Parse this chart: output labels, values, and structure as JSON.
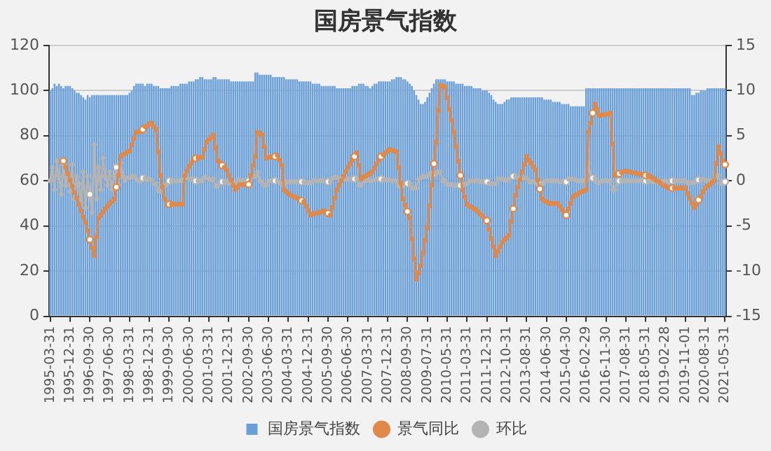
{
  "chart_data": {
    "type": "bar",
    "title": "国房景气指数",
    "categories": [
      "1995-03-31",
      null,
      null,
      null,
      null,
      null,
      null,
      null,
      null,
      "1995-12-31",
      null,
      null,
      null,
      null,
      null,
      null,
      null,
      null,
      "1996-09-30",
      null,
      null,
      null,
      null,
      null,
      null,
      null,
      null,
      "1997-06-30",
      null,
      null,
      null,
      null,
      null,
      null,
      null,
      null,
      "1998-03-31",
      null,
      null,
      null,
      null,
      null,
      null,
      null,
      null,
      "1998-12-31",
      null,
      null,
      null,
      null,
      null,
      null,
      null,
      null,
      "1999-09-30",
      null,
      null,
      null,
      null,
      null,
      null,
      null,
      null,
      "2000-06-30",
      null,
      null,
      null,
      null,
      null,
      null,
      null,
      null,
      "2001-03-31",
      null,
      null,
      null,
      null,
      null,
      null,
      null,
      null,
      "2001-12-31",
      null,
      null,
      null,
      null,
      null,
      null,
      null,
      null,
      "2002-09-30",
      null,
      null,
      null,
      null,
      null,
      null,
      null,
      null,
      "2003-06-30",
      null,
      null,
      null,
      null,
      null,
      null,
      null,
      null,
      "2004-03-31",
      null,
      null,
      null,
      null,
      null,
      null,
      null,
      null,
      "2004-12-31",
      null,
      null,
      null,
      null,
      null,
      null,
      null,
      null,
      "2005-09-30",
      null,
      null,
      null,
      null,
      null,
      null,
      null,
      null,
      "2006-06-30",
      null,
      null,
      null,
      null,
      null,
      null,
      null,
      null,
      "2007-03-31",
      null,
      null,
      null,
      null,
      null,
      null,
      null,
      null,
      "2007-12-31",
      null,
      null,
      null,
      null,
      null,
      null,
      null,
      null,
      "2008-09-30",
      null,
      null,
      null,
      null,
      null,
      null,
      null,
      null,
      "2009-07-31",
      null,
      null,
      null,
      null,
      null,
      null,
      null,
      null,
      "2010-05-31",
      null,
      null,
      null,
      null,
      null,
      null,
      null,
      null,
      "2011-03-31",
      null,
      null,
      null,
      null,
      null,
      null,
      null,
      null,
      "2011-12-31",
      null,
      null,
      null,
      null,
      null,
      null,
      null,
      null,
      "2012-10-31",
      null,
      null,
      null,
      null,
      null,
      null,
      null,
      null,
      "2013-08-31",
      null,
      null,
      null,
      null,
      null,
      null,
      null,
      null,
      "2014-06-30",
      null,
      null,
      null,
      null,
      null,
      null,
      null,
      null,
      "2015-04-30",
      null,
      null,
      null,
      null,
      null,
      null,
      null,
      null,
      "2016-02-29",
      null,
      null,
      null,
      null,
      null,
      null,
      null,
      null,
      "2016-11-30",
      null,
      null,
      null,
      null,
      null,
      null,
      null,
      null,
      "2017-08-31",
      null,
      null,
      null,
      null,
      null,
      null,
      null,
      null,
      "2018-05-31",
      null,
      null,
      null,
      null,
      null,
      null,
      null,
      null,
      "2019-02-28",
      null,
      null,
      null,
      null,
      null,
      null,
      null,
      null,
      "2019-11-01",
      null,
      null,
      null,
      null,
      null,
      null,
      null,
      null,
      "2020-08-31",
      null,
      null,
      null,
      null,
      null,
      null,
      null,
      null,
      "2021-05-31"
    ],
    "series": [
      {
        "name": "国房景气指数",
        "color": "#6a9fd8",
        "values": [
          100,
          101,
          103,
          102,
          103,
          102,
          101,
          102,
          102,
          102,
          101,
          100,
          99,
          99,
          98,
          97,
          96,
          98,
          97,
          98,
          98,
          98,
          98,
          98,
          98,
          98,
          98,
          98,
          98,
          98,
          98,
          98,
          98,
          98,
          98,
          98,
          99,
          100,
          102,
          103,
          103,
          103,
          103,
          102,
          103,
          103,
          103,
          102,
          102,
          102,
          101,
          101,
          101,
          101,
          101,
          102,
          102,
          102,
          102,
          103,
          103,
          103,
          103,
          104,
          104,
          104,
          105,
          105,
          106,
          106,
          105,
          105,
          105,
          105,
          106,
          106,
          105,
          105,
          105,
          105,
          105,
          105,
          104,
          104,
          104,
          104,
          104,
          104,
          104,
          104,
          104,
          104,
          104,
          108,
          108,
          107,
          107,
          107,
          107,
          107,
          107,
          106,
          106,
          106,
          106,
          106,
          106,
          105,
          105,
          105,
          105,
          105,
          105,
          104,
          104,
          104,
          104,
          104,
          104,
          103,
          103,
          103,
          103,
          102,
          102,
          102,
          102,
          102,
          102,
          102,
          101,
          101,
          101,
          101,
          101,
          101,
          101,
          102,
          102,
          102,
          103,
          103,
          103,
          102,
          102,
          101,
          102,
          103,
          103,
          104,
          104,
          104,
          104,
          104,
          104,
          105,
          105,
          106,
          106,
          106,
          105,
          105,
          104,
          103,
          102,
          100,
          98,
          96,
          94,
          94,
          95,
          97,
          99,
          101,
          103,
          105,
          105,
          105,
          105,
          105,
          104,
          104,
          104,
          104,
          103,
          103,
          103,
          103,
          102,
          102,
          102,
          102,
          101,
          101,
          101,
          101,
          100,
          100,
          100,
          99,
          98,
          96,
          95,
          94,
          94,
          94,
          95,
          96,
          96,
          97,
          97,
          97,
          97,
          97,
          97,
          97,
          97,
          97,
          97,
          97,
          97,
          97,
          97,
          97,
          96,
          96,
          96,
          96,
          95,
          95,
          95,
          95,
          94,
          94,
          94,
          94,
          93,
          93,
          93,
          93,
          93,
          93,
          93,
          101,
          101,
          101,
          101,
          101,
          101,
          101,
          101,
          101,
          101,
          101,
          101,
          101,
          101,
          101,
          101,
          101,
          101,
          101,
          101,
          101,
          101,
          101,
          101,
          101,
          101,
          101,
          101,
          101,
          101,
          101,
          101,
          101,
          101,
          101,
          101,
          101,
          101,
          101,
          101,
          101,
          101,
          101,
          101,
          101,
          101,
          101,
          101,
          98,
          98,
          99,
          99,
          100,
          100,
          100,
          101,
          101,
          101,
          101,
          101,
          101,
          101,
          101,
          101
        ]
      },
      {
        "name": "景气同比",
        "type": "line",
        "axis": "y2",
        "color": "#e0894a",
        "values": [
          null,
          null,
          null,
          null,
          null,
          null,
          2.2,
          1.5,
          0.8,
          0.1,
          -0.6,
          -1.3,
          -1.9,
          -2.6,
          -3.3,
          -4.0,
          -4.6,
          -5.5,
          -6.5,
          -7.4,
          -8.3,
          -6.2,
          -4.1,
          -3.8,
          -3.4,
          -3.1,
          -2.8,
          -2.5,
          -2.3,
          -2.0,
          -0.7,
          0.6,
          2.7,
          2.9,
          3.0,
          3.2,
          3.3,
          4.0,
          4.7,
          5.4,
          5.4,
          5.4,
          5.7,
          6.0,
          6.1,
          6.3,
          6.4,
          6.0,
          5.7,
          3.2,
          0.6,
          -0.7,
          -2.0,
          -2.6,
          -2.6,
          -2.6,
          -2.6,
          -2.6,
          -2.6,
          -2.6,
          -2.6,
          0.6,
          1.1,
          1.6,
          2.0,
          2.5,
          2.5,
          2.5,
          2.6,
          2.6,
          3.5,
          4.3,
          4.6,
          4.8,
          5.1,
          3.7,
          2.2,
          2.0,
          1.7,
          1.5,
          1.2,
          0.6,
          0.1,
          -0.5,
          -1.0,
          -0.7,
          -0.4,
          -0.4,
          -0.4,
          -0.4,
          -0.4,
          0.6,
          1.7,
          2.7,
          5.4,
          5.3,
          5.1,
          3.8,
          2.5,
          2.6,
          2.6,
          2.7,
          2.7,
          2.8,
          2.3,
          1.7,
          -1.0,
          -1.2,
          -1.4,
          -1.6,
          -1.7,
          -1.8,
          -1.9,
          -2.1,
          -2.2,
          -2.3,
          -2.8,
          -3.3,
          -3.8,
          -3.7,
          -3.6,
          -3.6,
          -3.5,
          -3.4,
          -3.3,
          -3.5,
          -3.6,
          -3.8,
          -2.9,
          -1.9,
          -1.0,
          -0.5,
          0,
          0.5,
          1.0,
          1.5,
          1.9,
          2.3,
          2.7,
          3.1,
          1.7,
          0.2,
          0.4,
          0.5,
          0.7,
          0.8,
          1.0,
          1.4,
          1.9,
          2.3,
          2.7,
          2.9,
          3.1,
          3.3,
          3.5,
          3.4,
          3.3,
          3.2,
          1.5,
          -0.3,
          -2.0,
          -2.7,
          -3.4,
          -4.1,
          -6.4,
          -8.6,
          -10.9,
          -10.2,
          -9.4,
          -8.0,
          -6.6,
          -5.2,
          -2.8,
          -0.5,
          1.9,
          4.3,
          7.8,
          10.6,
          10.5,
          10.4,
          9.2,
          7.9,
          6.7,
          5.4,
          3.8,
          2.2,
          0.6,
          -1.0,
          -1.8,
          -2.6,
          -2.8,
          -2.9,
          -3.1,
          -3.2,
          -3.4,
          -3.7,
          -3.9,
          -4.2,
          -4.4,
          -5.4,
          -6.4,
          -7.3,
          -8.3,
          -7.8,
          -7.3,
          -6.8,
          -6.5,
          -6.3,
          -6.0,
          -4.5,
          -3.1,
          -1.6,
          -0.7,
          0.1,
          1.0,
          1.8,
          2.7,
          2.3,
          2.0,
          1.6,
          1.2,
          0.1,
          -0.9,
          -2.0,
          -2.2,
          -2.3,
          -2.5,
          -2.5,
          -2.5,
          -2.5,
          -2.5,
          -2.8,
          -3.2,
          -3.5,
          -3.8,
          -3.1,
          -2.5,
          -1.8,
          -1.6,
          -1.5,
          -1.3,
          -1.2,
          -1.1,
          -1.0,
          5.4,
          6.4,
          7.5,
          8.5,
          7.9,
          7.2,
          7.3,
          7.3,
          7.4,
          7.4,
          7.5,
          4.1,
          0.6,
          0.7,
          0.8,
          0.9,
          1.0,
          1.1,
          1.0,
          1.0,
          0.9,
          0.9,
          0.8,
          0.8,
          0.7,
          0.7,
          0.6,
          0.6,
          0.5,
          0.3,
          0.2,
          0,
          -0.1,
          -0.3,
          -0.5,
          -0.6,
          -0.8,
          -0.8,
          -0.8,
          -0.8,
          -0.8,
          -0.8,
          -0.8,
          -0.8,
          -0.8,
          -1.4,
          -1.9,
          -2.5,
          -3.0,
          -2.6,
          -2.1,
          -1.7,
          -1.2,
          -0.8,
          -0.6,
          -0.4,
          -0.2,
          0,
          1.9,
          3.8,
          3.0,
          2.2,
          1.8
        ]
      },
      {
        "name": "环比",
        "type": "line",
        "axis": "y2",
        "color": "#b4b4b4",
        "values": [
          0,
          1.5,
          -1.0,
          2.2,
          0.5,
          -1.5,
          2.0,
          -0.5,
          0.8,
          -1.2,
          1.8,
          -2.0,
          0.5,
          -0.3,
          -2.5,
          1.0,
          -3.0,
          0.5,
          -1.5,
          -3.5,
          4.0,
          -2.0,
          1.5,
          -1.0,
          2.5,
          0.5,
          -0.5,
          1.0,
          -1.0,
          0.5,
          1.5,
          -0.5,
          2.0,
          0.5,
          0,
          0.3,
          0.3,
          0.5,
          0.5,
          0.2,
          0,
          0,
          0.3,
          0.3,
          0.1,
          0.2,
          0.1,
          -0.3,
          -0.3,
          -1.0,
          -1.2,
          -0.5,
          -0.6,
          -0.3,
          0,
          0,
          0,
          0,
          0,
          0,
          0,
          0.8,
          0.3,
          0.2,
          0.2,
          0.2,
          0,
          0,
          0,
          0,
          0.4,
          0.4,
          0.2,
          0.1,
          0.2,
          -0.6,
          -0.6,
          -0.1,
          -0.1,
          -0.1,
          -0.1,
          -0.3,
          -0.2,
          -0.3,
          -0.2,
          0.1,
          0.1,
          0,
          0,
          0,
          0,
          0.4,
          0.5,
          0.5,
          1.0,
          0,
          -0.1,
          -0.5,
          -0.5,
          0,
          0,
          0,
          0,
          0,
          -0.2,
          -0.3,
          -0.6,
          -0.1,
          -0.1,
          -0.1,
          -0.1,
          -0.1,
          -0.1,
          -0.1,
          -0.1,
          -0.1,
          -0.2,
          -0.2,
          -0.2,
          0,
          0,
          0,
          0,
          0,
          0,
          -0.1,
          -0.1,
          -0.1,
          0.3,
          0.4,
          0.4,
          0.2,
          0.2,
          0.2,
          0.2,
          0.2,
          0.2,
          0.2,
          0.2,
          0.2,
          -0.5,
          -0.5,
          0,
          0,
          0.1,
          0,
          0,
          0.1,
          0.2,
          0.2,
          0.2,
          0.1,
          0.1,
          0.1,
          0.1,
          0,
          0,
          0,
          -0.6,
          -0.6,
          -0.6,
          -0.3,
          -0.3,
          -0.3,
          -0.8,
          -0.8,
          -0.8,
          0.2,
          0.3,
          0.5,
          0.5,
          0.5,
          0.8,
          0.8,
          0.8,
          0.8,
          1.0,
          1.0,
          0,
          0,
          -0.4,
          -0.4,
          -0.4,
          -0.5,
          -0.5,
          -0.5,
          -0.5,
          -0.5,
          -0.3,
          -0.3,
          0,
          0,
          0,
          0,
          0,
          -0.1,
          -0.1,
          -0.1,
          -0.1,
          -0.3,
          -0.3,
          -0.3,
          -0.3,
          0.2,
          0.2,
          0.2,
          0.1,
          0.1,
          0.1,
          0.5,
          0.5,
          0.5,
          0.3,
          0.3,
          0.3,
          0.3,
          0.3,
          -0.1,
          -0.1,
          -0.1,
          -0.1,
          -0.4,
          -0.4,
          -0.4,
          -0.1,
          0,
          0,
          0,
          0,
          0,
          0,
          -0.1,
          -0.1,
          -0.1,
          -0.1,
          0.2,
          0.2,
          0.2,
          0.1,
          0,
          0,
          0,
          0,
          0,
          2.0,
          0.3,
          0.3,
          0.3,
          -0.2,
          -0.2,
          0,
          0,
          0,
          0,
          0,
          -1.0,
          -1.0,
          0,
          0,
          0,
          0,
          0,
          0,
          0,
          0,
          0,
          0,
          0,
          0,
          0,
          0,
          0,
          0,
          -0.1,
          -0.1,
          -0.1,
          0,
          -0.1,
          -0.1,
          0,
          -0.1,
          0,
          0,
          0,
          0,
          0,
          0,
          0,
          0,
          -0.2,
          -0.2,
          -0.2,
          -0.2,
          0.1,
          0.1,
          0.1,
          0.2,
          0.1,
          0,
          0,
          0,
          0,
          0.6,
          0.6,
          -0.3,
          -0.3,
          -0.1
        ]
      }
    ],
    "ylim": [
      0,
      120
    ],
    "yticks": [
      0,
      20,
      40,
      60,
      80,
      100,
      120
    ],
    "y2lim": [
      -15,
      15
    ],
    "y2ticks": [
      -15,
      -10,
      -5,
      0,
      5,
      10,
      15
    ],
    "grid": "y",
    "legend": "bottom",
    "marker": "circle",
    "line_style": "solid"
  }
}
